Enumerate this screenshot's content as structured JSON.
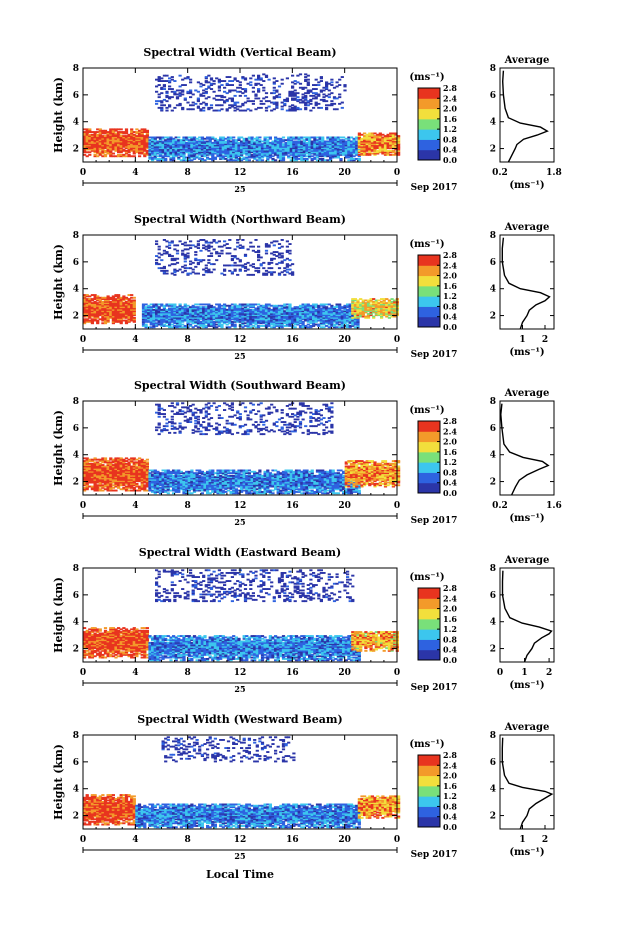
{
  "figure": {
    "xlabel": "Local Time",
    "date_label": "Sep 2017",
    "day_label": "25",
    "ylabel": "Height (km)",
    "colorbar_unit": "(ms⁻¹)",
    "profile_title": "Average",
    "profile_xlabel": "(ms⁻¹)",
    "x_ticks": [
      "0",
      "4",
      "8",
      "12",
      "16",
      "20",
      "0"
    ],
    "y_ticks": [
      "2",
      "4",
      "6",
      "8"
    ],
    "colorbar_ticks": [
      "0.0",
      "0.4",
      "0.8",
      "1.2",
      "1.6",
      "2.0",
      "2.4",
      "2.8"
    ],
    "profile_y_ticks": [
      "2",
      "4",
      "6",
      "8"
    ],
    "colors": {
      "dark_blue": "#2b35a8",
      "blue": "#2e62e0",
      "cyan": "#3cc6ee",
      "green": "#79e07a",
      "yellow": "#f2df3c",
      "orange": "#f39a2a",
      "red": "#e8341f"
    }
  },
  "chart_data": [
    {
      "type": "heatmap",
      "title": "Spectral Width (Vertical Beam)",
      "xlim": [
        0,
        24
      ],
      "ylim": [
        1,
        8
      ],
      "zlim": [
        0,
        2.8
      ],
      "regions": [
        {
          "x": [
            0,
            5
          ],
          "y": [
            1.4,
            3.5
          ],
          "value": 2.6
        },
        {
          "x": [
            5,
            21
          ],
          "y": [
            1.1,
            2.9
          ],
          "value": 0.7
        },
        {
          "x": [
            21,
            24
          ],
          "y": [
            1.5,
            3.2
          ],
          "value": 2.3
        },
        {
          "x": [
            5.5,
            20
          ],
          "y": [
            4.8,
            7.5
          ],
          "value": 0.1
        }
      ],
      "profile": {
        "xticks": [
          "0.2",
          "1.8"
        ],
        "xlim": [
          0.2,
          1.8
        ],
        "points": [
          [
            0.45,
            1.0
          ],
          [
            0.55,
            1.5
          ],
          [
            0.65,
            2.0
          ],
          [
            0.7,
            2.3
          ],
          [
            0.9,
            2.7
          ],
          [
            1.3,
            3.0
          ],
          [
            1.6,
            3.3
          ],
          [
            1.4,
            3.6
          ],
          [
            0.8,
            3.9
          ],
          [
            0.45,
            4.3
          ],
          [
            0.35,
            5.0
          ],
          [
            0.3,
            6.0
          ],
          [
            0.28,
            7.0
          ],
          [
            0.3,
            7.8
          ]
        ]
      }
    },
    {
      "type": "heatmap",
      "title": "Spectral Width (Northward Beam)",
      "xlim": [
        0,
        24
      ],
      "ylim": [
        1,
        8
      ],
      "zlim": [
        0,
        2.8
      ],
      "regions": [
        {
          "x": [
            0,
            4
          ],
          "y": [
            1.4,
            3.6
          ],
          "value": 2.6
        },
        {
          "x": [
            4.5,
            21
          ],
          "y": [
            1.1,
            2.9
          ],
          "value": 0.7
        },
        {
          "x": [
            20.5,
            24
          ],
          "y": [
            1.8,
            3.3
          ],
          "value": 1.9
        },
        {
          "x": [
            5.5,
            16
          ],
          "y": [
            5.0,
            7.6
          ],
          "value": 0.1
        }
      ],
      "profile": {
        "xticks": [
          "1",
          "2"
        ],
        "xlim": [
          0,
          2.4
        ],
        "points": [
          [
            0.9,
            1.0
          ],
          [
            1.0,
            1.5
          ],
          [
            1.2,
            2.0
          ],
          [
            1.3,
            2.4
          ],
          [
            1.6,
            2.8
          ],
          [
            2.0,
            3.1
          ],
          [
            2.2,
            3.4
          ],
          [
            1.8,
            3.7
          ],
          [
            0.9,
            4.0
          ],
          [
            0.4,
            4.4
          ],
          [
            0.2,
            5.0
          ],
          [
            0.1,
            6.0
          ],
          [
            0.1,
            7.0
          ],
          [
            0.15,
            7.8
          ]
        ]
      }
    },
    {
      "type": "heatmap",
      "title": "Spectral Width (Southward Beam)",
      "xlim": [
        0,
        24
      ],
      "ylim": [
        1,
        8
      ],
      "zlim": [
        0,
        2.8
      ],
      "regions": [
        {
          "x": [
            0,
            5
          ],
          "y": [
            1.3,
            3.8
          ],
          "value": 2.6
        },
        {
          "x": [
            5,
            21
          ],
          "y": [
            1.1,
            2.9
          ],
          "value": 0.7
        },
        {
          "x": [
            20,
            24
          ],
          "y": [
            1.6,
            3.6
          ],
          "value": 2.2
        },
        {
          "x": [
            5.5,
            19
          ],
          "y": [
            5.5,
            7.8
          ],
          "value": 0.1
        }
      ],
      "profile": {
        "xticks": [
          "0.2",
          "1.6"
        ],
        "xlim": [
          0.2,
          1.6
        ],
        "points": [
          [
            0.5,
            1.0
          ],
          [
            0.6,
            1.6
          ],
          [
            0.7,
            2.1
          ],
          [
            0.9,
            2.5
          ],
          [
            1.2,
            2.9
          ],
          [
            1.45,
            3.2
          ],
          [
            1.3,
            3.5
          ],
          [
            0.8,
            3.8
          ],
          [
            0.45,
            4.2
          ],
          [
            0.3,
            4.8
          ],
          [
            0.25,
            6.0
          ],
          [
            0.22,
            7.0
          ],
          [
            0.25,
            7.8
          ]
        ]
      }
    },
    {
      "type": "heatmap",
      "title": "Spectral Width (Eastward Beam)",
      "xlim": [
        0,
        24
      ],
      "ylim": [
        1,
        8
      ],
      "zlim": [
        0,
        2.8
      ],
      "regions": [
        {
          "x": [
            0,
            5
          ],
          "y": [
            1.3,
            3.6
          ],
          "value": 2.6
        },
        {
          "x": [
            5,
            21
          ],
          "y": [
            1.1,
            3.0
          ],
          "value": 0.7
        },
        {
          "x": [
            20.5,
            24
          ],
          "y": [
            1.8,
            3.3
          ],
          "value": 2.1
        },
        {
          "x": [
            5.5,
            20.5
          ],
          "y": [
            5.5,
            7.8
          ],
          "value": 0.1
        }
      ],
      "profile": {
        "xticks": [
          "0",
          "1",
          "2"
        ],
        "xlim": [
          0,
          2.2
        ],
        "points": [
          [
            1.0,
            1.0
          ],
          [
            1.1,
            1.5
          ],
          [
            1.3,
            2.0
          ],
          [
            1.4,
            2.4
          ],
          [
            1.7,
            2.8
          ],
          [
            2.0,
            3.1
          ],
          [
            2.1,
            3.3
          ],
          [
            1.6,
            3.6
          ],
          [
            0.9,
            3.9
          ],
          [
            0.4,
            4.3
          ],
          [
            0.2,
            5.0
          ],
          [
            0.1,
            6.0
          ],
          [
            0.1,
            7.0
          ],
          [
            0.12,
            7.8
          ]
        ]
      }
    },
    {
      "type": "heatmap",
      "title": "Spectral Width (Westward Beam)",
      "xlim": [
        0,
        24
      ],
      "ylim": [
        1,
        8
      ],
      "zlim": [
        0,
        2.8
      ],
      "regions": [
        {
          "x": [
            0,
            4
          ],
          "y": [
            1.3,
            3.6
          ],
          "value": 2.6
        },
        {
          "x": [
            4,
            21
          ],
          "y": [
            1.1,
            2.9
          ],
          "value": 0.7
        },
        {
          "x": [
            21,
            24
          ],
          "y": [
            1.8,
            3.5
          ],
          "value": 2.2
        },
        {
          "x": [
            6,
            16
          ],
          "y": [
            6.0,
            7.8
          ],
          "value": 0.1
        }
      ],
      "profile": {
        "xticks": [
          "1",
          "2"
        ],
        "xlim": [
          0,
          2.4
        ],
        "points": [
          [
            0.9,
            1.0
          ],
          [
            1.0,
            1.5
          ],
          [
            1.2,
            2.0
          ],
          [
            1.3,
            2.5
          ],
          [
            1.6,
            2.9
          ],
          [
            1.9,
            3.2
          ],
          [
            2.3,
            3.6
          ],
          [
            2.0,
            3.8
          ],
          [
            1.0,
            4.1
          ],
          [
            0.4,
            4.4
          ],
          [
            0.2,
            5.0
          ],
          [
            0.1,
            6.0
          ],
          [
            0.1,
            7.0
          ],
          [
            0.12,
            7.8
          ]
        ]
      }
    }
  ]
}
